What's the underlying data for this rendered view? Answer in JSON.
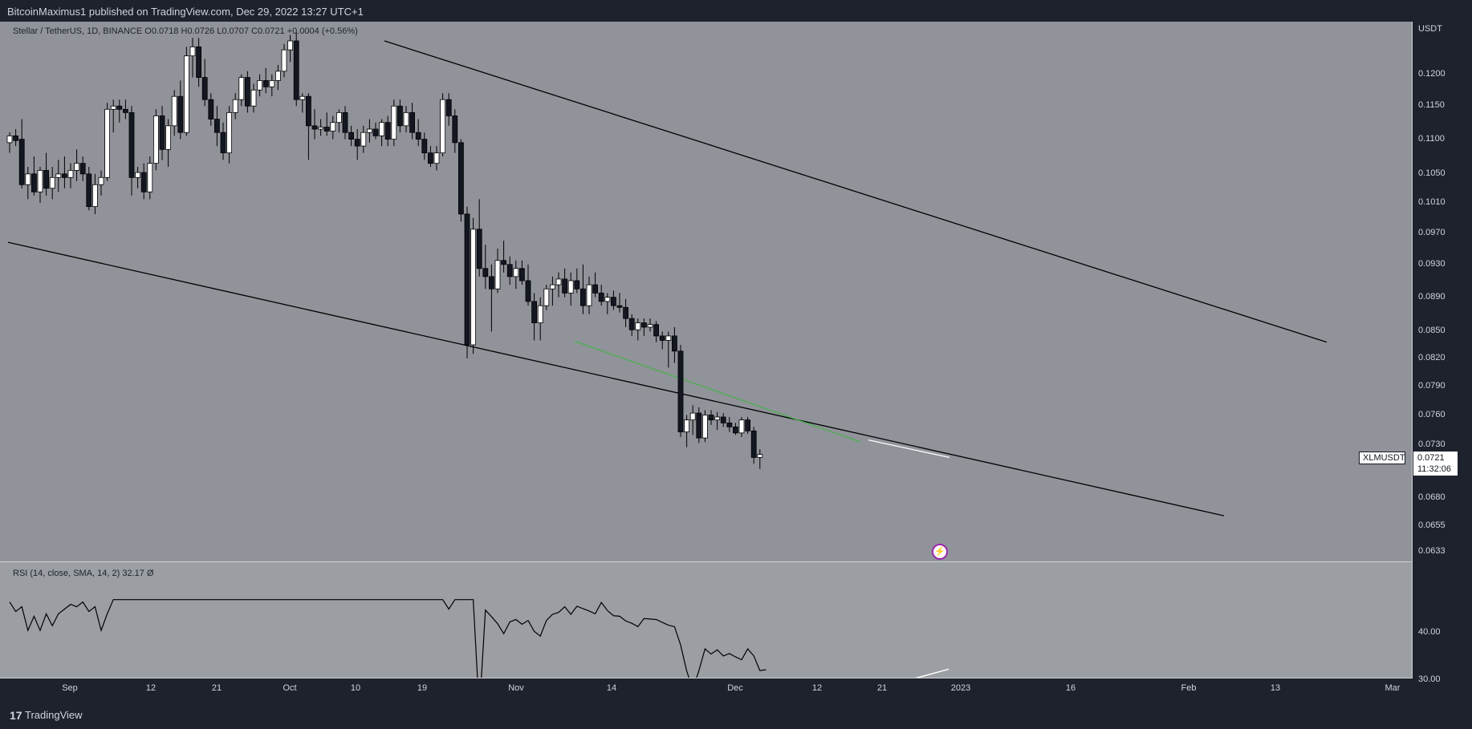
{
  "header": {
    "published": "BitcoinMaximus1 published on TradingView.com, Dec 29, 2022 13:27 UTC+1"
  },
  "legend": {
    "symbol": "Stellar / TetherUS, 1D, BINANCE",
    "o_label": "O",
    "o": "0.0718",
    "h_label": "H",
    "h": "0.0726",
    "l_label": "L",
    "l": "0.0707",
    "c_label": "C",
    "c": "0.0721",
    "change": "+0.0004 (+0.56%)"
  },
  "rsi_legend": {
    "label": "RSI (14, close, SMA, 14, 2)",
    "value": "32.17",
    "extra": "Ø"
  },
  "currency": "USDT",
  "price_tag": {
    "price": "0.0721",
    "countdown": "11:32:06",
    "symbol": "XLMUSDT"
  },
  "footer": {
    "brand": "TradingView",
    "logo_glyph": "17"
  },
  "flash_glyph": "⚡",
  "chart_data": [
    {
      "type": "candlestick",
      "title": "Stellar / TetherUS, 1D, BINANCE",
      "ylabel": "USDT",
      "ylim": [
        0.0633,
        0.1245
      ],
      "y_scale": "log",
      "yticks": [
        "0.1200",
        "0.1150",
        "0.1100",
        "0.1050",
        "0.1010",
        "0.0970",
        "0.0930",
        "0.0890",
        "0.0850",
        "0.0820",
        "0.0790",
        "0.0760",
        "0.0730",
        "0.0705",
        "0.0680",
        "0.0655",
        "0.0633"
      ],
      "xticks": [
        "Sep",
        "12",
        "21",
        "Oct",
        "10",
        "19",
        "Nov",
        "14",
        "Dec",
        "12",
        "21",
        "2023",
        "16",
        "Feb",
        "13",
        "Mar"
      ],
      "candles": [
        {
          "o": 0.1095,
          "h": 0.111,
          "l": 0.108,
          "c": 0.1105
        },
        {
          "o": 0.1105,
          "h": 0.1115,
          "l": 0.109,
          "c": 0.1098
        },
        {
          "o": 0.11,
          "h": 0.113,
          "l": 0.103,
          "c": 0.1035
        },
        {
          "o": 0.1035,
          "h": 0.106,
          "l": 0.1015,
          "c": 0.105
        },
        {
          "o": 0.105,
          "h": 0.1075,
          "l": 0.102,
          "c": 0.1025
        },
        {
          "o": 0.1025,
          "h": 0.106,
          "l": 0.101,
          "c": 0.1055
        },
        {
          "o": 0.1055,
          "h": 0.108,
          "l": 0.102,
          "c": 0.103
        },
        {
          "o": 0.103,
          "h": 0.106,
          "l": 0.1015,
          "c": 0.1045
        },
        {
          "o": 0.1045,
          "h": 0.107,
          "l": 0.1025,
          "c": 0.105
        },
        {
          "o": 0.105,
          "h": 0.1075,
          "l": 0.103,
          "c": 0.1045
        },
        {
          "o": 0.1045,
          "h": 0.1065,
          "l": 0.103,
          "c": 0.1055
        },
        {
          "o": 0.1055,
          "h": 0.1085,
          "l": 0.104,
          "c": 0.1065
        },
        {
          "o": 0.1065,
          "h": 0.1075,
          "l": 0.104,
          "c": 0.105
        },
        {
          "o": 0.105,
          "h": 0.106,
          "l": 0.1,
          "c": 0.1005
        },
        {
          "o": 0.1005,
          "h": 0.105,
          "l": 0.0995,
          "c": 0.1035
        },
        {
          "o": 0.1035,
          "h": 0.1055,
          "l": 0.102,
          "c": 0.1045
        },
        {
          "o": 0.1045,
          "h": 0.1155,
          "l": 0.104,
          "c": 0.1145
        },
        {
          "o": 0.1145,
          "h": 0.116,
          "l": 0.111,
          "c": 0.115
        },
        {
          "o": 0.115,
          "h": 0.116,
          "l": 0.1125,
          "c": 0.1145
        },
        {
          "o": 0.1145,
          "h": 0.116,
          "l": 0.113,
          "c": 0.114
        },
        {
          "o": 0.114,
          "h": 0.115,
          "l": 0.102,
          "c": 0.1045
        },
        {
          "o": 0.1045,
          "h": 0.106,
          "l": 0.103,
          "c": 0.1052
        },
        {
          "o": 0.1052,
          "h": 0.1065,
          "l": 0.1015,
          "c": 0.1025
        },
        {
          "o": 0.1025,
          "h": 0.1075,
          "l": 0.1015,
          "c": 0.1065
        },
        {
          "o": 0.1065,
          "h": 0.1145,
          "l": 0.1055,
          "c": 0.1135
        },
        {
          "o": 0.1135,
          "h": 0.115,
          "l": 0.107,
          "c": 0.1085
        },
        {
          "o": 0.1085,
          "h": 0.113,
          "l": 0.106,
          "c": 0.112
        },
        {
          "o": 0.112,
          "h": 0.1175,
          "l": 0.1105,
          "c": 0.1165
        },
        {
          "o": 0.1165,
          "h": 0.119,
          "l": 0.11,
          "c": 0.111
        },
        {
          "o": 0.111,
          "h": 0.1245,
          "l": 0.1105,
          "c": 0.123
        },
        {
          "o": 0.123,
          "h": 0.126,
          "l": 0.1195,
          "c": 0.1245
        },
        {
          "o": 0.1245,
          "h": 0.126,
          "l": 0.118,
          "c": 0.1195
        },
        {
          "o": 0.1195,
          "h": 0.1225,
          "l": 0.115,
          "c": 0.116
        },
        {
          "o": 0.116,
          "h": 0.117,
          "l": 0.112,
          "c": 0.113
        },
        {
          "o": 0.113,
          "h": 0.115,
          "l": 0.109,
          "c": 0.111
        },
        {
          "o": 0.111,
          "h": 0.1125,
          "l": 0.107,
          "c": 0.108
        },
        {
          "o": 0.108,
          "h": 0.115,
          "l": 0.1065,
          "c": 0.114
        },
        {
          "o": 0.114,
          "h": 0.117,
          "l": 0.113,
          "c": 0.116
        },
        {
          "o": 0.116,
          "h": 0.12,
          "l": 0.115,
          "c": 0.1195
        },
        {
          "o": 0.1195,
          "h": 0.1205,
          "l": 0.114,
          "c": 0.115
        },
        {
          "o": 0.115,
          "h": 0.1185,
          "l": 0.114,
          "c": 0.1175
        },
        {
          "o": 0.1175,
          "h": 0.12,
          "l": 0.1165,
          "c": 0.119
        },
        {
          "o": 0.119,
          "h": 0.121,
          "l": 0.117,
          "c": 0.118
        },
        {
          "o": 0.118,
          "h": 0.12,
          "l": 0.1165,
          "c": 0.119
        },
        {
          "o": 0.119,
          "h": 0.1215,
          "l": 0.1175,
          "c": 0.1205
        },
        {
          "o": 0.1205,
          "h": 0.125,
          "l": 0.1195,
          "c": 0.124
        },
        {
          "o": 0.124,
          "h": 0.1265,
          "l": 0.122,
          "c": 0.1255
        },
        {
          "o": 0.1255,
          "h": 0.127,
          "l": 0.115,
          "c": 0.116
        },
        {
          "o": 0.116,
          "h": 0.117,
          "l": 0.114,
          "c": 0.1165
        },
        {
          "o": 0.1165,
          "h": 0.117,
          "l": 0.107,
          "c": 0.112
        },
        {
          "o": 0.112,
          "h": 0.1145,
          "l": 0.11,
          "c": 0.1115
        },
        {
          "o": 0.1115,
          "h": 0.113,
          "l": 0.1105,
          "c": 0.1118
        },
        {
          "o": 0.1118,
          "h": 0.114,
          "l": 0.1105,
          "c": 0.1112
        },
        {
          "o": 0.1112,
          "h": 0.1135,
          "l": 0.11,
          "c": 0.1125
        },
        {
          "o": 0.1125,
          "h": 0.1145,
          "l": 0.111,
          "c": 0.114
        },
        {
          "o": 0.114,
          "h": 0.115,
          "l": 0.11,
          "c": 0.111
        },
        {
          "o": 0.111,
          "h": 0.112,
          "l": 0.109,
          "c": 0.11
        },
        {
          "o": 0.11,
          "h": 0.1115,
          "l": 0.107,
          "c": 0.109
        },
        {
          "o": 0.109,
          "h": 0.112,
          "l": 0.108,
          "c": 0.111
        },
        {
          "o": 0.111,
          "h": 0.113,
          "l": 0.1095,
          "c": 0.1115
        },
        {
          "o": 0.1115,
          "h": 0.1125,
          "l": 0.11,
          "c": 0.1105
        },
        {
          "o": 0.1105,
          "h": 0.113,
          "l": 0.109,
          "c": 0.1125
        },
        {
          "o": 0.1125,
          "h": 0.1135,
          "l": 0.109,
          "c": 0.11
        },
        {
          "o": 0.11,
          "h": 0.116,
          "l": 0.109,
          "c": 0.115
        },
        {
          "o": 0.115,
          "h": 0.116,
          "l": 0.111,
          "c": 0.112
        },
        {
          "o": 0.112,
          "h": 0.115,
          "l": 0.111,
          "c": 0.114
        },
        {
          "o": 0.114,
          "h": 0.1155,
          "l": 0.11,
          "c": 0.111
        },
        {
          "o": 0.111,
          "h": 0.113,
          "l": 0.109,
          "c": 0.11
        },
        {
          "o": 0.11,
          "h": 0.111,
          "l": 0.107,
          "c": 0.108
        },
        {
          "o": 0.108,
          "h": 0.109,
          "l": 0.106,
          "c": 0.1065
        },
        {
          "o": 0.1065,
          "h": 0.109,
          "l": 0.1055,
          "c": 0.108
        },
        {
          "o": 0.108,
          "h": 0.117,
          "l": 0.1075,
          "c": 0.116
        },
        {
          "o": 0.116,
          "h": 0.117,
          "l": 0.112,
          "c": 0.1135
        },
        {
          "o": 0.1135,
          "h": 0.1145,
          "l": 0.108,
          "c": 0.1095
        },
        {
          "o": 0.1095,
          "h": 0.11,
          "l": 0.0985,
          "c": 0.0995
        },
        {
          "o": 0.0995,
          "h": 0.1005,
          "l": 0.082,
          "c": 0.0835
        },
        {
          "o": 0.0835,
          "h": 0.099,
          "l": 0.0825,
          "c": 0.0975
        },
        {
          "o": 0.0975,
          "h": 0.1015,
          "l": 0.0915,
          "c": 0.0925
        },
        {
          "o": 0.0925,
          "h": 0.0955,
          "l": 0.09,
          "c": 0.0915
        },
        {
          "o": 0.0915,
          "h": 0.093,
          "l": 0.085,
          "c": 0.09
        },
        {
          "o": 0.09,
          "h": 0.095,
          "l": 0.0895,
          "c": 0.0935
        },
        {
          "o": 0.0935,
          "h": 0.096,
          "l": 0.092,
          "c": 0.093
        },
        {
          "o": 0.093,
          "h": 0.094,
          "l": 0.0905,
          "c": 0.0915
        },
        {
          "o": 0.0915,
          "h": 0.0935,
          "l": 0.09,
          "c": 0.0925
        },
        {
          "o": 0.0925,
          "h": 0.0935,
          "l": 0.0905,
          "c": 0.091
        },
        {
          "o": 0.091,
          "h": 0.093,
          "l": 0.088,
          "c": 0.0885
        },
        {
          "o": 0.0885,
          "h": 0.0895,
          "l": 0.084,
          "c": 0.086
        },
        {
          "o": 0.086,
          "h": 0.089,
          "l": 0.084,
          "c": 0.088
        },
        {
          "o": 0.088,
          "h": 0.0905,
          "l": 0.0875,
          "c": 0.09
        },
        {
          "o": 0.09,
          "h": 0.0915,
          "l": 0.088,
          "c": 0.0905
        },
        {
          "o": 0.0905,
          "h": 0.092,
          "l": 0.089,
          "c": 0.0912
        },
        {
          "o": 0.0912,
          "h": 0.0925,
          "l": 0.089,
          "c": 0.0895
        },
        {
          "o": 0.0895,
          "h": 0.092,
          "l": 0.088,
          "c": 0.091
        },
        {
          "o": 0.091,
          "h": 0.0925,
          "l": 0.0895,
          "c": 0.09
        },
        {
          "o": 0.09,
          "h": 0.093,
          "l": 0.087,
          "c": 0.088
        },
        {
          "o": 0.088,
          "h": 0.0915,
          "l": 0.087,
          "c": 0.0905
        },
        {
          "o": 0.0905,
          "h": 0.092,
          "l": 0.089,
          "c": 0.0895
        },
        {
          "o": 0.0895,
          "h": 0.0905,
          "l": 0.088,
          "c": 0.0885
        },
        {
          "o": 0.0885,
          "h": 0.0895,
          "l": 0.087,
          "c": 0.089
        },
        {
          "o": 0.089,
          "h": 0.0898,
          "l": 0.0875,
          "c": 0.088
        },
        {
          "o": 0.088,
          "h": 0.0895,
          "l": 0.0872,
          "c": 0.0878
        },
        {
          "o": 0.0878,
          "h": 0.0888,
          "l": 0.0855,
          "c": 0.0865
        },
        {
          "o": 0.0865,
          "h": 0.087,
          "l": 0.0845,
          "c": 0.0852
        },
        {
          "o": 0.0852,
          "h": 0.0865,
          "l": 0.084,
          "c": 0.086
        },
        {
          "o": 0.086,
          "h": 0.0865,
          "l": 0.0845,
          "c": 0.0855
        },
        {
          "o": 0.0855,
          "h": 0.0865,
          "l": 0.085,
          "c": 0.0858
        },
        {
          "o": 0.0858,
          "h": 0.0862,
          "l": 0.0838,
          "c": 0.0845
        },
        {
          "o": 0.0845,
          "h": 0.085,
          "l": 0.083,
          "c": 0.084
        },
        {
          "o": 0.084,
          "h": 0.085,
          "l": 0.081,
          "c": 0.0845
        },
        {
          "o": 0.0845,
          "h": 0.0855,
          "l": 0.0815,
          "c": 0.0828
        },
        {
          "o": 0.0828,
          "h": 0.0835,
          "l": 0.0738,
          "c": 0.0743
        },
        {
          "o": 0.0743,
          "h": 0.076,
          "l": 0.0728,
          "c": 0.0755
        },
        {
          "o": 0.0755,
          "h": 0.077,
          "l": 0.074,
          "c": 0.0762
        },
        {
          "o": 0.0762,
          "h": 0.0768,
          "l": 0.0732,
          "c": 0.0737
        },
        {
          "o": 0.0737,
          "h": 0.0765,
          "l": 0.0733,
          "c": 0.076
        },
        {
          "o": 0.076,
          "h": 0.0765,
          "l": 0.075,
          "c": 0.0755
        },
        {
          "o": 0.0755,
          "h": 0.0763,
          "l": 0.0745,
          "c": 0.0758
        },
        {
          "o": 0.0758,
          "h": 0.0762,
          "l": 0.0748,
          "c": 0.0752
        },
        {
          "o": 0.0752,
          "h": 0.0758,
          "l": 0.0743,
          "c": 0.0748
        },
        {
          "o": 0.0748,
          "h": 0.0752,
          "l": 0.074,
          "c": 0.0742
        },
        {
          "o": 0.0742,
          "h": 0.0758,
          "l": 0.0738,
          "c": 0.0755
        },
        {
          "o": 0.0755,
          "h": 0.0758,
          "l": 0.0741,
          "c": 0.0744
        },
        {
          "o": 0.0744,
          "h": 0.0748,
          "l": 0.0712,
          "c": 0.0718
        },
        {
          "o": 0.0718,
          "h": 0.0726,
          "l": 0.0707,
          "c": 0.0721
        }
      ],
      "trendlines": [
        {
          "name": "upper",
          "color": "#000000",
          "points": [
            [
              0.1255,
              0.1245
            ],
            [
              0.0838,
              0.0838
            ]
          ]
        },
        {
          "name": "lower",
          "color": "#000000",
          "points": [
            [
              0.0958,
              0.0958
            ],
            [
              0.0664,
              0.0664
            ]
          ]
        },
        {
          "name": "price-low-green",
          "color": "#4caf50",
          "points": [
            [
              0.0839,
              0.0839
            ],
            [
              0.0733,
              0.0733
            ]
          ]
        },
        {
          "name": "price-low-white",
          "color": "#ffffff",
          "points": [
            [
              0.0735,
              0.0735
            ],
            [
              0.0718,
              0.0718
            ]
          ]
        }
      ]
    },
    {
      "type": "line",
      "title": "RSI (14, close, SMA, 14, 2)",
      "ylim": [
        21.5,
        47
      ],
      "yticks": [
        "40.00",
        "30.00"
      ],
      "reference_line": 30,
      "values": [
        46.5,
        44.5,
        45.5,
        40.5,
        43.5,
        40.5,
        44,
        41.5,
        44,
        45,
        46,
        45.5,
        46.5,
        44.5,
        45.5,
        40.5,
        44,
        47,
        47,
        47,
        47,
        47,
        47,
        47,
        47,
        47,
        47,
        47,
        47,
        47,
        47,
        47,
        47,
        47,
        47,
        47,
        47,
        47,
        47,
        47,
        47,
        47,
        47,
        47,
        47,
        47,
        47,
        47,
        47,
        47,
        47,
        47,
        47,
        47,
        47,
        47,
        47,
        47,
        47,
        47,
        47,
        47,
        47,
        47,
        47,
        47,
        47,
        47,
        47,
        47,
        47,
        47,
        45,
        47,
        47,
        47,
        47,
        23.2,
        44.8,
        43.4,
        41.9,
        39.8,
        42.3,
        42.8,
        41.8,
        42.6,
        40.3,
        39.3,
        42.6,
        43.9,
        44.3,
        45.5,
        43.9,
        45.6,
        45.1,
        44.6,
        44,
        46.4,
        44.7,
        43.6,
        43.5,
        42.5,
        42,
        41.3,
        43,
        42.9,
        42.8,
        42.2,
        41.6,
        41.3,
        37.4,
        31.9,
        28.1,
        32,
        36.6,
        35.5,
        36.4,
        35.1,
        35.6,
        34.9,
        34.3,
        36.6,
        35.1,
        32,
        32.2
      ],
      "divergence_lines": [
        {
          "color": "#4caf50",
          "points": [
            [
              23.2,
              23.2
            ],
            [
              26.1,
              26.1
            ]
          ]
        },
        {
          "color": "#ffffff",
          "points": [
            [
              25.9,
              25.9
            ],
            [
              32.3,
              32.3
            ]
          ]
        }
      ]
    }
  ]
}
